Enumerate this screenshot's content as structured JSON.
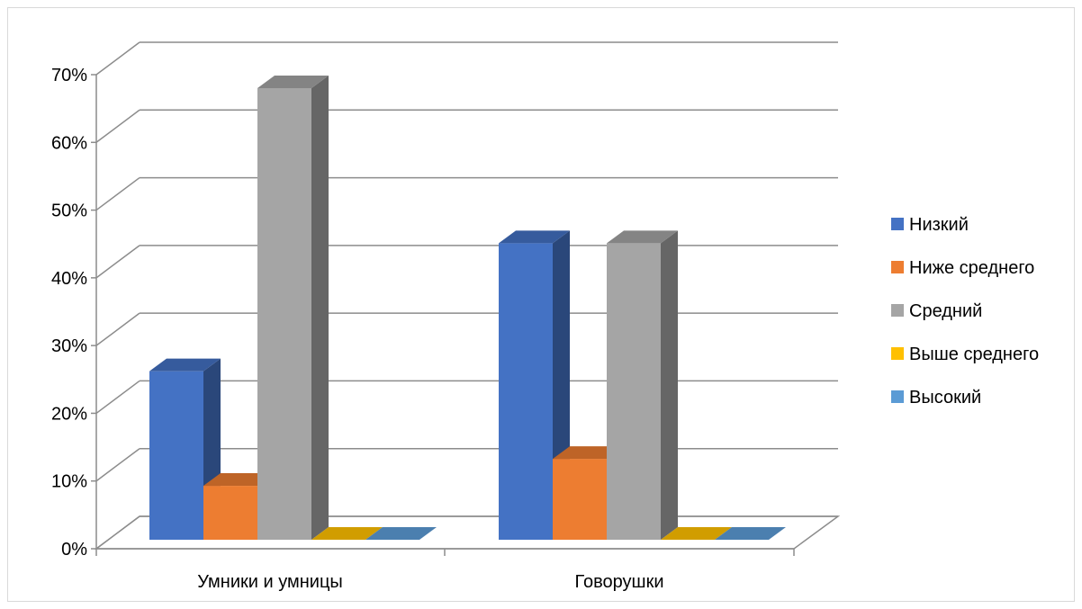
{
  "chart_data": {
    "type": "bar",
    "style": "3d-clustered-column",
    "categories": [
      "Умники и умницы",
      "Говорушки"
    ],
    "series": [
      {
        "name": "Низкий",
        "values": [
          25,
          44
        ],
        "color": "#4472C4"
      },
      {
        "name": "Ниже среднего",
        "values": [
          8,
          12
        ],
        "color": "#ED7D31"
      },
      {
        "name": "Средний",
        "values": [
          67,
          44
        ],
        "color": "#A5A5A5"
      },
      {
        "name": "Выше среднего",
        "values": [
          0,
          0
        ],
        "color": "#FFC000"
      },
      {
        "name": "Высокий",
        "values": [
          0,
          0
        ],
        "color": "#5B9BD5"
      }
    ],
    "ylim": [
      0,
      70
    ],
    "y_ticks": [
      "0%",
      "10%",
      "20%",
      "30%",
      "40%",
      "50%",
      "60%",
      "70%"
    ],
    "grid": true,
    "legend_position": "right",
    "title": "",
    "xlabel": "",
    "ylabel": ""
  }
}
